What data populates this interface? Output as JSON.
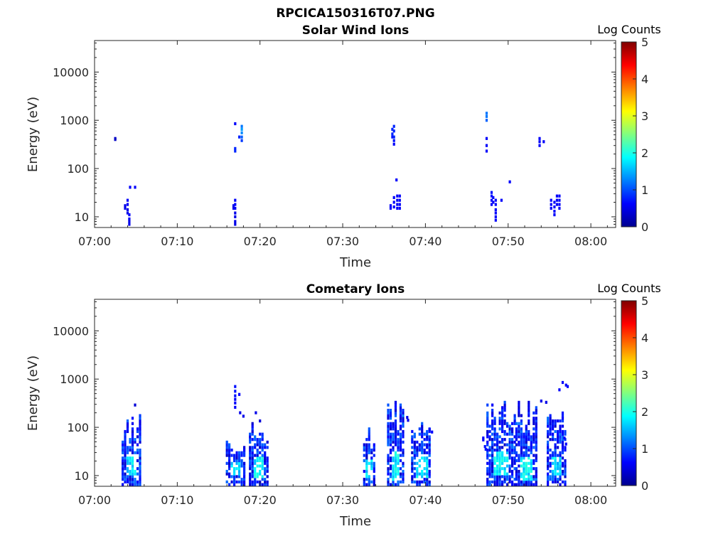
{
  "figure_title": "RPCICA150316T07.PNG",
  "colormap": [
    "#00008f",
    "#0000ff",
    "#0080ff",
    "#00ffff",
    "#80ff80",
    "#ffff00",
    "#ff8000",
    "#ff0000",
    "#800000"
  ],
  "chart_data": [
    {
      "type": "heatmap",
      "title": "Solar Wind Ions",
      "xlabel": "Time",
      "ylabel": "Energy (eV)",
      "x_ticks": [
        "07:00",
        "07:10",
        "07:20",
        "07:30",
        "07:40",
        "07:50",
        "08:00"
      ],
      "x_tick_minutes": [
        0,
        10,
        20,
        30,
        40,
        50,
        60
      ],
      "xlim_minutes": [
        0,
        63
      ],
      "y_ticks": [
        "10",
        "100",
        "1000",
        "10000"
      ],
      "y_tick_values": [
        10,
        100,
        1000,
        10000
      ],
      "ylim": [
        6,
        45000
      ],
      "y_scale": "log",
      "colorbar": {
        "title": "Log Counts",
        "ticks": [
          "0",
          "1",
          "2",
          "3",
          "4",
          "5"
        ],
        "range": [
          0,
          5
        ]
      },
      "points": [
        [
          2.5,
          420,
          0.3
        ],
        [
          2.5,
          400,
          0.3
        ],
        [
          3.7,
          15,
          0.5
        ],
        [
          3.7,
          17,
          0.5
        ],
        [
          4.0,
          22,
          0.6
        ],
        [
          4.0,
          18,
          0.6
        ],
        [
          4.0,
          14,
          0.5
        ],
        [
          4.0,
          12,
          0.5
        ],
        [
          4.2,
          11,
          0.6
        ],
        [
          4.2,
          9,
          0.6
        ],
        [
          4.2,
          8,
          0.5
        ],
        [
          4.2,
          7,
          0.5
        ],
        [
          4.3,
          41,
          0.6
        ],
        [
          4.9,
          41,
          0.6
        ],
        [
          16.8,
          17,
          0.5
        ],
        [
          16.8,
          15,
          0.5
        ],
        [
          17.0,
          22,
          0.6
        ],
        [
          17.0,
          18,
          0.6
        ],
        [
          17.0,
          15,
          0.6
        ],
        [
          17.0,
          12,
          0.5
        ],
        [
          17.0,
          10,
          0.5
        ],
        [
          17.0,
          8,
          0.5
        ],
        [
          17.0,
          7,
          0.5
        ],
        [
          17.0,
          850,
          0.6
        ],
        [
          17.0,
          260,
          0.8
        ],
        [
          17.0,
          230,
          0.8
        ],
        [
          17.5,
          450,
          0.8
        ],
        [
          17.8,
          750,
          1.2
        ],
        [
          17.8,
          650,
          1.4
        ],
        [
          17.8,
          550,
          1.3
        ],
        [
          17.8,
          450,
          1.1
        ],
        [
          17.8,
          380,
          0.9
        ],
        [
          35.8,
          17,
          0.6
        ],
        [
          35.8,
          15,
          0.6
        ],
        [
          36.0,
          650,
          0.8
        ],
        [
          36.0,
          520,
          0.8
        ],
        [
          36.0,
          450,
          0.7
        ],
        [
          36.2,
          750,
          0.8
        ],
        [
          36.2,
          600,
          0.8
        ],
        [
          36.2,
          450,
          0.8
        ],
        [
          36.2,
          380,
          0.7
        ],
        [
          36.2,
          320,
          0.6
        ],
        [
          36.2,
          25,
          0.6
        ],
        [
          36.2,
          20,
          0.6
        ],
        [
          36.2,
          16,
          0.6
        ],
        [
          36.5,
          58,
          0.6
        ],
        [
          36.6,
          27,
          0.6
        ],
        [
          36.6,
          22,
          0.6
        ],
        [
          36.6,
          18,
          0.6
        ],
        [
          36.6,
          15,
          0.6
        ],
        [
          36.9,
          27,
          0.6
        ],
        [
          36.9,
          22,
          0.6
        ],
        [
          36.9,
          18,
          0.6
        ],
        [
          36.9,
          15,
          0.6
        ],
        [
          47.4,
          1400,
          1.2
        ],
        [
          47.4,
          1200,
          1.2
        ],
        [
          47.4,
          1000,
          1.1
        ],
        [
          47.4,
          420,
          0.6
        ],
        [
          47.4,
          300,
          0.6
        ],
        [
          47.4,
          230,
          0.6
        ],
        [
          48.0,
          32,
          0.7
        ],
        [
          48.0,
          27,
          0.7
        ],
        [
          48.0,
          22,
          0.6
        ],
        [
          48.0,
          18,
          0.6
        ],
        [
          48.2,
          25,
          0.6
        ],
        [
          48.2,
          20,
          0.6
        ],
        [
          48.5,
          22,
          0.6
        ],
        [
          48.5,
          18,
          0.6
        ],
        [
          48.5,
          14,
          0.6
        ],
        [
          48.5,
          12,
          0.6
        ],
        [
          48.5,
          10,
          0.6
        ],
        [
          48.5,
          8.5,
          0.6
        ],
        [
          49.2,
          22,
          0.6
        ],
        [
          50.2,
          53,
          0.6
        ],
        [
          53.8,
          420,
          0.6
        ],
        [
          53.8,
          360,
          0.6
        ],
        [
          53.8,
          300,
          0.6
        ],
        [
          54.3,
          360,
          0.6
        ],
        [
          55.2,
          22,
          0.6
        ],
        [
          55.2,
          18,
          0.6
        ],
        [
          55.2,
          15,
          0.6
        ],
        [
          55.6,
          20,
          0.6
        ],
        [
          55.6,
          16,
          0.6
        ],
        [
          55.6,
          13,
          0.6
        ],
        [
          55.6,
          11,
          0.6
        ],
        [
          55.9,
          27,
          0.6
        ],
        [
          55.9,
          22,
          0.6
        ],
        [
          55.9,
          18,
          0.6
        ],
        [
          56.2,
          27,
          0.6
        ],
        [
          56.2,
          22,
          0.6
        ],
        [
          56.2,
          18,
          0.6
        ],
        [
          56.2,
          15,
          0.6
        ]
      ]
    },
    {
      "type": "heatmap",
      "title": "Cometary Ions",
      "xlabel": "Time",
      "ylabel": "Energy (eV)",
      "x_ticks": [
        "07:00",
        "07:10",
        "07:20",
        "07:30",
        "07:40",
        "07:50",
        "08:00"
      ],
      "x_tick_minutes": [
        0,
        10,
        20,
        30,
        40,
        50,
        60
      ],
      "xlim_minutes": [
        0,
        63
      ],
      "y_ticks": [
        "10",
        "100",
        "1000",
        "10000"
      ],
      "y_tick_values": [
        10,
        100,
        1000,
        10000
      ],
      "ylim": [
        6,
        45000
      ],
      "y_scale": "log",
      "colorbar": {
        "title": "Log Counts",
        "ticks": [
          "0",
          "1",
          "2",
          "3",
          "4",
          "5"
        ],
        "range": [
          0,
          5
        ]
      },
      "bursts": [
        {
          "x0": 3.4,
          "x1": 5.5,
          "core": [
            10,
            25
          ],
          "core_level": 1.7,
          "top": 220,
          "bottom": 6.5,
          "extra": [
            [
              4.9,
              290,
              0.4
            ]
          ]
        },
        {
          "x0": 16.0,
          "x1": 18.2,
          "core": [
            10,
            20
          ],
          "core_level": 1.6,
          "top": 60,
          "bottom": 6.5,
          "extra": [
            [
              17.0,
              700,
              0.7
            ],
            [
              17.0,
              560,
              0.7
            ],
            [
              17.0,
              450,
              0.7
            ],
            [
              17.0,
              380,
              0.6
            ],
            [
              17.0,
              320,
              0.6
            ],
            [
              17.0,
              260,
              0.6
            ],
            [
              17.5,
              480,
              0.6
            ],
            [
              17.6,
              200,
              0.5
            ],
            [
              18.0,
              170,
              0.5
            ]
          ]
        },
        {
          "x0": 18.8,
          "x1": 21.0,
          "core": [
            9,
            25
          ],
          "core_level": 1.8,
          "top": 160,
          "bottom": 6.5,
          "extra": [
            [
              19.5,
              200,
              0.5
            ]
          ]
        },
        {
          "x0": 32.6,
          "x1": 34.0,
          "core": [
            9,
            22
          ],
          "core_level": 1.7,
          "top": 120,
          "bottom": 6.5,
          "extra": []
        },
        {
          "x0": 35.5,
          "x1": 37.3,
          "core": [
            8,
            30
          ],
          "core_level": 1.8,
          "top": 380,
          "bottom": 6.5,
          "extra": [
            [
              37.8,
              160,
              0.5
            ],
            [
              37.9,
              140,
              0.5
            ]
          ]
        },
        {
          "x0": 38.4,
          "x1": 40.7,
          "core": [
            9,
            25
          ],
          "core_level": 1.7,
          "top": 250,
          "bottom": 6.5,
          "extra": [
            [
              40.5,
              90,
              0.6
            ],
            [
              40.8,
              80,
              0.6
            ]
          ]
        },
        {
          "x0": 47.5,
          "x1": 50.8,
          "core": [
            10,
            30
          ],
          "core_level": 1.8,
          "top": 400,
          "bottom": 6.5,
          "extra": [
            [
              47.0,
              60,
              0.6
            ],
            [
              47.0,
              55,
              0.6
            ],
            [
              47.2,
              40,
              0.7
            ],
            [
              47.3,
              35,
              0.7
            ]
          ]
        },
        {
          "x0": 51.0,
          "x1": 53.4,
          "core": [
            8,
            25
          ],
          "core_level": 1.8,
          "top": 380,
          "bottom": 6.5,
          "extra": [
            [
              54.0,
              350,
              0.5
            ],
            [
              54.6,
              330,
              0.5
            ]
          ]
        },
        {
          "x0": 54.8,
          "x1": 56.9,
          "core": [
            10,
            25
          ],
          "core_level": 1.7,
          "top": 280,
          "bottom": 6.5,
          "extra": [
            [
              56.6,
              850,
              0.6
            ],
            [
              57.0,
              750,
              0.6
            ],
            [
              57.2,
              700,
              0.6
            ],
            [
              56.2,
              600,
              0.6
            ],
            [
              56.8,
              60,
              0.6
            ],
            [
              57.0,
              45,
              0.6
            ]
          ]
        }
      ]
    }
  ]
}
